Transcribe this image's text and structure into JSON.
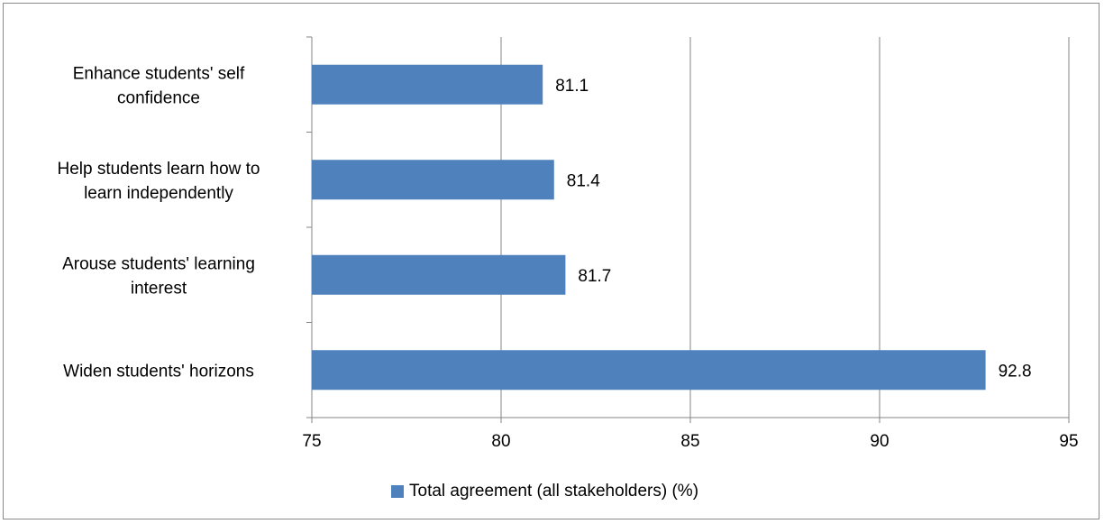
{
  "chart_data": {
    "type": "bar",
    "orientation": "horizontal",
    "categories": [
      "Widen students' horizons",
      "Arouse students' learning interest",
      "Help students learn how to learn independently",
      "Enhance students' self confidence"
    ],
    "category_lines": [
      [
        "Widen students' horizons"
      ],
      [
        "Arouse students' learning",
        "interest"
      ],
      [
        "Help students learn how to",
        "learn independently"
      ],
      [
        "Enhance students' self",
        "confidence"
      ]
    ],
    "series": [
      {
        "name": "Total agreement (all stakeholders) (%)",
        "values": [
          92.8,
          81.7,
          81.4,
          81.1
        ],
        "color": "#4f81bd"
      }
    ],
    "data_labels": [
      "92.8",
      "81.7",
      "81.4",
      "81.1"
    ],
    "xlim": [
      75,
      95
    ],
    "x_ticks": [
      75,
      80,
      85,
      90,
      95
    ],
    "x_tick_labels": [
      "75",
      "80",
      "85",
      "90",
      "95"
    ],
    "grid": true,
    "legend_position": "bottom",
    "title": "",
    "xlabel": "",
    "ylabel": ""
  }
}
